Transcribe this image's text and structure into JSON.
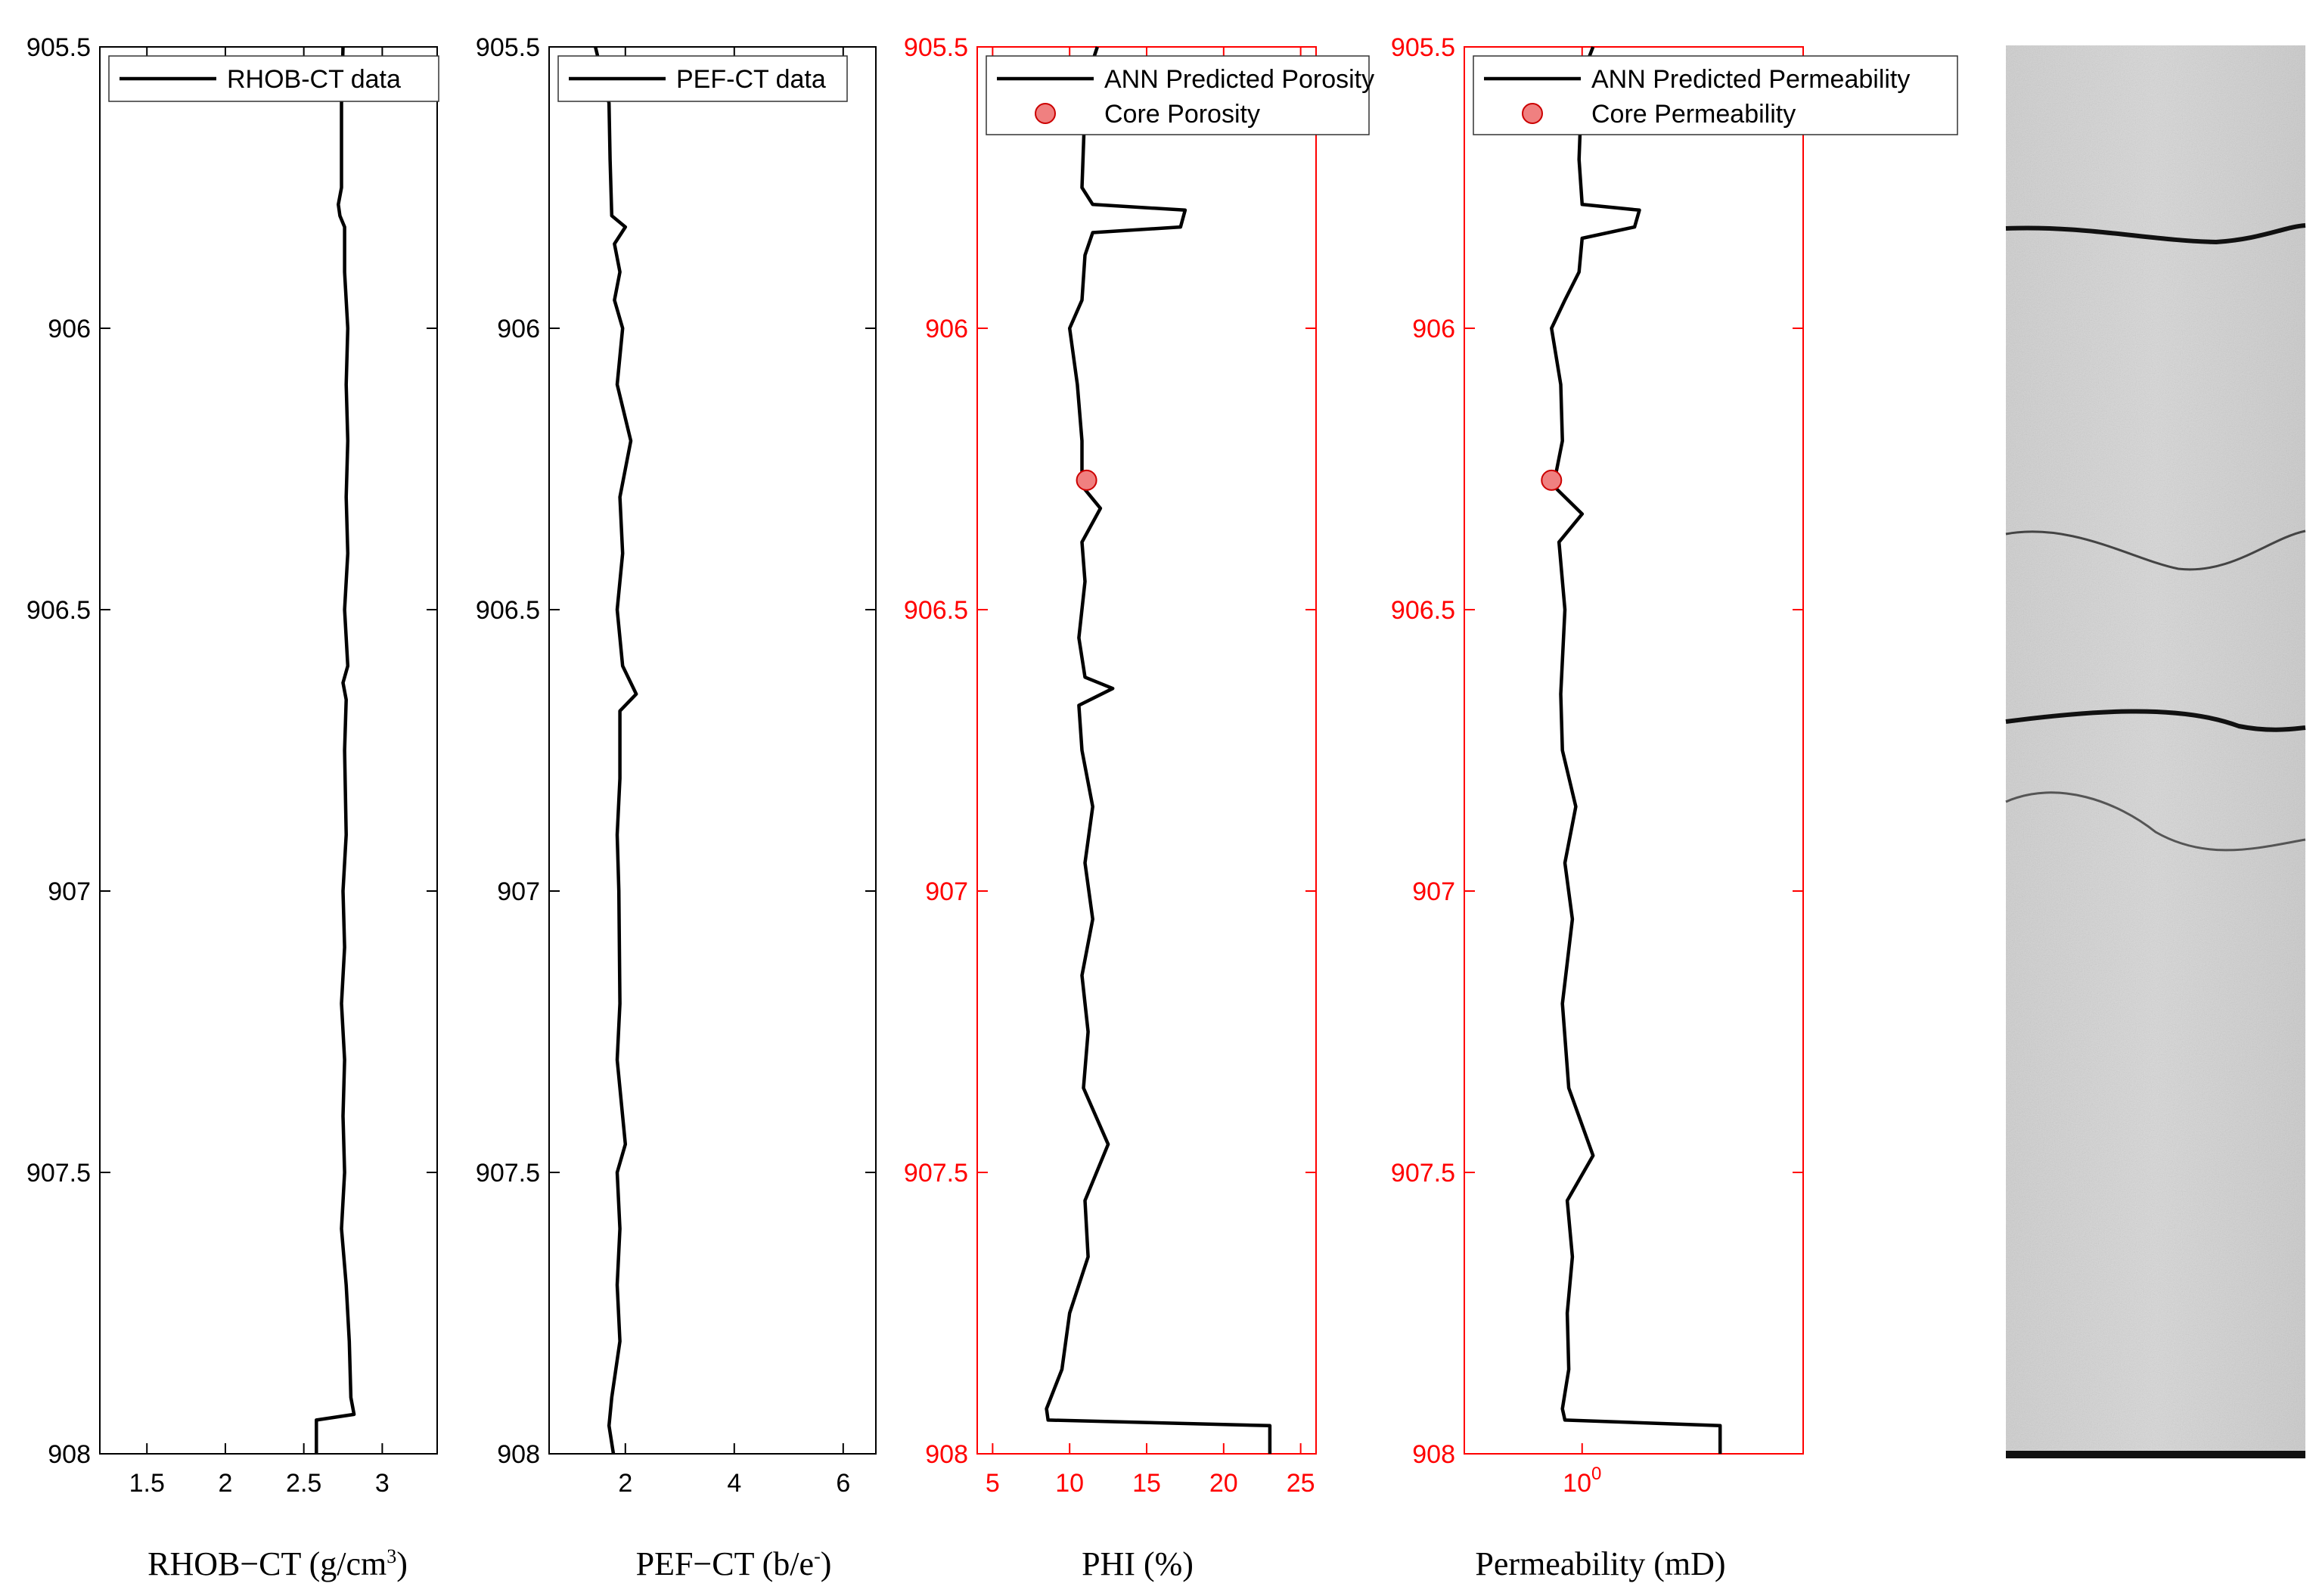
{
  "colors": {
    "black": "#000000",
    "red": "#ff0000",
    "marker_fill": "#f08080",
    "marker_edge": "#cc0000"
  },
  "depth": {
    "ylim": [
      905.5,
      908
    ],
    "ticks": [
      "905.5",
      "906",
      "906.5",
      "907",
      "907.5",
      "908"
    ]
  },
  "core_image": {
    "label": "core-ct-image"
  },
  "chart_data": [
    {
      "type": "line",
      "xlabel": "RHOB−CT (g/cm",
      "xlabel_sup": "3",
      "xlabel_end": ")",
      "xlim": [
        1.2,
        3.35
      ],
      "xticks": [
        {
          "v": 1.5,
          "t": "1.5"
        },
        {
          "v": 2,
          "t": "2"
        },
        {
          "v": 2.5,
          "t": "2.5"
        },
        {
          "v": 3,
          "t": "3"
        }
      ],
      "axis_color": "#000000",
      "series": [
        {
          "name": "RHOB-CT data",
          "points": [
            [
              2.75,
              905.5
            ],
            [
              2.74,
              905.6
            ],
            [
              2.74,
              905.75
            ],
            [
              2.72,
              905.78
            ],
            [
              2.73,
              905.8
            ],
            [
              2.76,
              905.82
            ],
            [
              2.76,
              905.9
            ],
            [
              2.78,
              906.0
            ],
            [
              2.77,
              906.1
            ],
            [
              2.78,
              906.2
            ],
            [
              2.77,
              906.3
            ],
            [
              2.78,
              906.4
            ],
            [
              2.76,
              906.5
            ],
            [
              2.78,
              906.6
            ],
            [
              2.75,
              906.63
            ],
            [
              2.77,
              906.66
            ],
            [
              2.76,
              906.75
            ],
            [
              2.77,
              906.9
            ],
            [
              2.75,
              907.0
            ],
            [
              2.76,
              907.1
            ],
            [
              2.74,
              907.2
            ],
            [
              2.76,
              907.3
            ],
            [
              2.75,
              907.4
            ],
            [
              2.76,
              907.5
            ],
            [
              2.74,
              907.6
            ],
            [
              2.77,
              907.7
            ],
            [
              2.79,
              907.8
            ],
            [
              2.8,
              907.9
            ],
            [
              2.82,
              907.93
            ],
            [
              2.58,
              907.94
            ],
            [
              2.58,
              908.0
            ]
          ]
        }
      ],
      "markers": []
    },
    {
      "type": "line",
      "xlabel": "PEF−CT (b/e",
      "xlabel_sup": "-",
      "xlabel_end": ")",
      "xlim": [
        0.6,
        6.6
      ],
      "xticks": [
        {
          "v": 2,
          "t": "2"
        },
        {
          "v": 4,
          "t": "4"
        },
        {
          "v": 6,
          "t": "6"
        }
      ],
      "axis_color": "#000000",
      "series": [
        {
          "name": "PEF-CT data",
          "points": [
            [
              1.45,
              905.5
            ],
            [
              1.6,
              905.56
            ],
            [
              1.7,
              905.6
            ],
            [
              1.72,
              905.7
            ],
            [
              1.75,
              905.8
            ],
            [
              2.0,
              905.82
            ],
            [
              1.8,
              905.85
            ],
            [
              1.9,
              905.9
            ],
            [
              1.8,
              905.95
            ],
            [
              1.95,
              906.0
            ],
            [
              1.85,
              906.1
            ],
            [
              2.1,
              906.2
            ],
            [
              1.9,
              906.3
            ],
            [
              1.95,
              906.4
            ],
            [
              1.85,
              906.5
            ],
            [
              1.95,
              906.6
            ],
            [
              2.2,
              906.65
            ],
            [
              1.9,
              906.68
            ],
            [
              1.9,
              906.8
            ],
            [
              1.85,
              906.9
            ],
            [
              1.88,
              907.0
            ],
            [
              1.9,
              907.2
            ],
            [
              1.85,
              907.3
            ],
            [
              2.0,
              907.45
            ],
            [
              1.85,
              907.5
            ],
            [
              1.9,
              907.6
            ],
            [
              1.85,
              907.7
            ],
            [
              1.9,
              907.8
            ],
            [
              1.75,
              907.9
            ],
            [
              1.7,
              907.95
            ],
            [
              1.78,
              908.0
            ]
          ]
        }
      ],
      "markers": []
    },
    {
      "type": "line",
      "xlabel": "PHI (%)",
      "xlim": [
        4,
        26
      ],
      "xticks": [
        {
          "v": 5,
          "t": "5"
        },
        {
          "v": 10,
          "t": "10"
        },
        {
          "v": 15,
          "t": "15"
        },
        {
          "v": 20,
          "t": "20"
        },
        {
          "v": 25,
          "t": "25"
        }
      ],
      "axis_color": "#ff0000",
      "series": [
        {
          "name": "ANN Predicted Porosity",
          "points": [
            [
              11.8,
              905.5
            ],
            [
              11.2,
              905.55
            ],
            [
              11.0,
              905.6
            ],
            [
              10.8,
              905.75
            ],
            [
              11.5,
              905.78
            ],
            [
              17.5,
              905.79
            ],
            [
              17.2,
              905.82
            ],
            [
              11.5,
              905.83
            ],
            [
              11.0,
              905.87
            ],
            [
              10.8,
              905.95
            ],
            [
              10.0,
              906.0
            ],
            [
              10.5,
              906.1
            ],
            [
              10.8,
              906.2
            ],
            [
              10.8,
              906.28
            ],
            [
              12.0,
              906.32
            ],
            [
              10.8,
              906.38
            ],
            [
              11.0,
              906.45
            ],
            [
              10.6,
              906.55
            ],
            [
              11.0,
              906.62
            ],
            [
              12.8,
              906.64
            ],
            [
              10.6,
              906.67
            ],
            [
              10.8,
              906.75
            ],
            [
              11.5,
              906.85
            ],
            [
              11.0,
              906.95
            ],
            [
              11.5,
              907.05
            ],
            [
              10.8,
              907.15
            ],
            [
              11.2,
              907.25
            ],
            [
              10.9,
              907.35
            ],
            [
              12.5,
              907.45
            ],
            [
              11.0,
              907.55
            ],
            [
              11.2,
              907.65
            ],
            [
              10.0,
              907.75
            ],
            [
              9.5,
              907.85
            ],
            [
              8.5,
              907.92
            ],
            [
              8.6,
              907.94
            ],
            [
              23.0,
              907.95
            ],
            [
              23.0,
              908.0
            ]
          ]
        }
      ],
      "markers": [
        {
          "name": "Core Porosity",
          "x": 11.1,
          "y": 906.27
        }
      ]
    },
    {
      "type": "line",
      "xlabel": "Permeability (mD)",
      "xscale": "log",
      "xlim": [
        0.14,
        40
      ],
      "xticks": [
        {
          "v": 1,
          "t": "10",
          "sup": "0"
        }
      ],
      "axis_color": "#ff0000",
      "series": [
        {
          "name": "ANN Predicted Permeability",
          "points": [
            [
              1.2,
              905.5
            ],
            [
              1.0,
              905.55
            ],
            [
              0.95,
              905.7
            ],
            [
              1.0,
              905.78
            ],
            [
              2.6,
              905.79
            ],
            [
              2.4,
              905.82
            ],
            [
              1.0,
              905.84
            ],
            [
              0.95,
              905.9
            ],
            [
              0.75,
              905.95
            ],
            [
              0.6,
              906.0
            ],
            [
              0.7,
              906.1
            ],
            [
              0.72,
              906.2
            ],
            [
              0.62,
              906.28
            ],
            [
              1.0,
              906.33
            ],
            [
              0.68,
              906.38
            ],
            [
              0.75,
              906.5
            ],
            [
              0.7,
              906.65
            ],
            [
              0.72,
              906.75
            ],
            [
              0.9,
              906.85
            ],
            [
              0.75,
              906.95
            ],
            [
              0.85,
              907.05
            ],
            [
              0.72,
              907.2
            ],
            [
              0.8,
              907.35
            ],
            [
              1.2,
              907.47
            ],
            [
              0.78,
              907.55
            ],
            [
              0.85,
              907.65
            ],
            [
              0.78,
              907.75
            ],
            [
              0.8,
              907.85
            ],
            [
              0.72,
              907.92
            ],
            [
              0.75,
              907.94
            ],
            [
              10.0,
              907.95
            ],
            [
              10.0,
              908.0
            ]
          ]
        }
      ],
      "markers": [
        {
          "name": "Core Permeability",
          "x": 0.6,
          "y": 906.27
        }
      ]
    }
  ]
}
